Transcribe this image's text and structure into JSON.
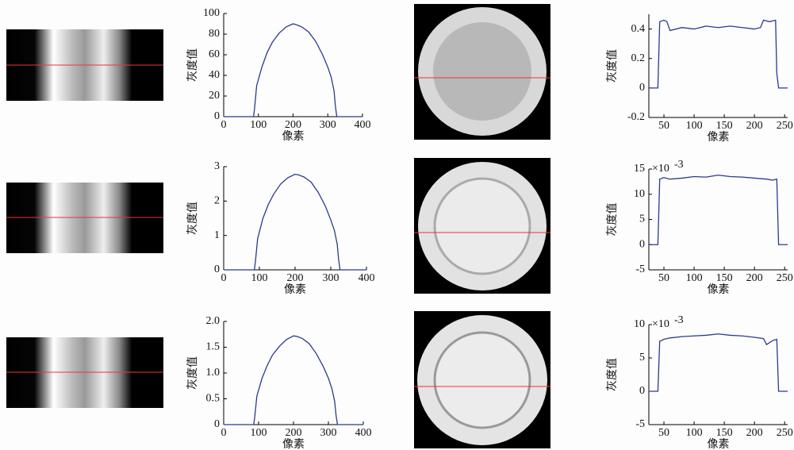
{
  "chart_data": [
    {
      "type": "line",
      "xlabel": "像素",
      "ylabel": "灰度值",
      "color": "#2b3a8f",
      "xlim": [
        0,
        400
      ],
      "ylim": [
        0,
        100
      ],
      "xticks": [
        0,
        100,
        200,
        300,
        400
      ],
      "yticks": [
        0,
        20,
        40,
        60,
        80,
        100
      ],
      "x": [
        0,
        86,
        89,
        95,
        110,
        125,
        140,
        160,
        180,
        200,
        210,
        225,
        245,
        265,
        285,
        300,
        310,
        318,
        322,
        326,
        400
      ],
      "values": [
        0,
        0,
        8,
        30,
        48,
        62,
        72,
        81,
        87,
        90,
        89,
        87,
        82,
        73,
        60,
        48,
        38,
        25,
        10,
        0,
        0
      ]
    },
    {
      "type": "line",
      "xlabel": "像素",
      "ylabel": "灰度值",
      "color": "#2b3a8f",
      "xlim": [
        0,
        400
      ],
      "ylim": [
        0,
        3
      ],
      "xticks": [
        0,
        100,
        200,
        300,
        400
      ],
      "yticks": [
        0,
        1,
        2,
        3
      ],
      "x": [
        0,
        86,
        89,
        95,
        110,
        125,
        140,
        160,
        180,
        200,
        210,
        225,
        245,
        265,
        285,
        300,
        310,
        318,
        322,
        326,
        400
      ],
      "values": [
        0,
        0,
        0.25,
        0.9,
        1.5,
        1.9,
        2.2,
        2.5,
        2.68,
        2.78,
        2.76,
        2.7,
        2.55,
        2.25,
        1.85,
        1.45,
        1.15,
        0.75,
        0.3,
        0,
        0
      ]
    },
    {
      "type": "line",
      "xlabel": "像素",
      "ylabel": "灰度值",
      "color": "#2b3a8f",
      "xlim": [
        0,
        400
      ],
      "ylim": [
        0,
        2
      ],
      "xticks": [
        0,
        100,
        200,
        300,
        400
      ],
      "yticks": [
        0,
        0.5,
        {
          "value": 1,
          "label": "1.0"
        },
        1.5,
        {
          "value": 2,
          "label": "2.0"
        }
      ],
      "x": [
        0,
        86,
        89,
        95,
        110,
        125,
        140,
        160,
        180,
        200,
        210,
        225,
        245,
        265,
        285,
        300,
        310,
        318,
        322,
        326,
        400
      ],
      "values": [
        0,
        0,
        0.15,
        0.55,
        0.9,
        1.15,
        1.35,
        1.52,
        1.65,
        1.72,
        1.71,
        1.67,
        1.57,
        1.38,
        1.13,
        0.9,
        0.7,
        0.45,
        0.18,
        0,
        0
      ]
    },
    {
      "type": "line",
      "xlabel": "像素",
      "color": "#2b3a8f",
      "ylabel": "灰度值",
      "xlim": [
        25,
        255
      ],
      "ylim": [
        -0.2,
        0.5
      ],
      "xticks": [
        50,
        100,
        150,
        200,
        250
      ],
      "yticks": [
        -0.2,
        0,
        0.2,
        0.4
      ],
      "x": [
        25,
        40,
        43,
        50,
        55,
        60,
        80,
        100,
        120,
        140,
        160,
        180,
        200,
        210,
        215,
        225,
        235,
        237,
        240,
        255
      ],
      "values": [
        0,
        0,
        0.45,
        0.46,
        0.45,
        0.39,
        0.41,
        0.4,
        0.42,
        0.41,
        0.42,
        0.41,
        0.4,
        0.41,
        0.46,
        0.45,
        0.46,
        0.1,
        0,
        0
      ]
    },
    {
      "type": "line",
      "xlabel": "像素",
      "ylabel": "灰度值",
      "color": "#2b3a8f",
      "scale_base": "×10",
      "scale_exponent": "-3",
      "xlim": [
        25,
        255
      ],
      "ylim": [
        -5,
        15
      ],
      "xticks": [
        50,
        100,
        150,
        200,
        250
      ],
      "yticks": [
        -5,
        0,
        5,
        10,
        15
      ],
      "x": [
        25,
        40,
        43,
        50,
        60,
        80,
        100,
        120,
        140,
        160,
        180,
        200,
        220,
        230,
        237,
        240,
        255
      ],
      "values": [
        0,
        0,
        13,
        13.3,
        13,
        13.2,
        13.5,
        13.4,
        13.8,
        13.5,
        13.4,
        13.2,
        13,
        12.8,
        13,
        0,
        0
      ]
    },
    {
      "type": "line",
      "xlabel": "像素",
      "ylabel": "灰度值",
      "color": "#2b3a8f",
      "scale_base": "×10",
      "scale_exponent": "-3",
      "xlim": [
        25,
        255
      ],
      "ylim": [
        -5,
        10
      ],
      "xticks": [
        50,
        100,
        150,
        200,
        250
      ],
      "yticks": [
        -5,
        0,
        5,
        10
      ],
      "x": [
        25,
        40,
        43,
        50,
        60,
        80,
        100,
        120,
        140,
        160,
        180,
        200,
        215,
        220,
        230,
        237,
        240,
        255
      ],
      "values": [
        0,
        0,
        7.5,
        7.8,
        8,
        8.2,
        8.3,
        8.4,
        8.6,
        8.4,
        8.3,
        8.1,
        7.9,
        7,
        7.6,
        7.8,
        0,
        0
      ]
    }
  ]
}
